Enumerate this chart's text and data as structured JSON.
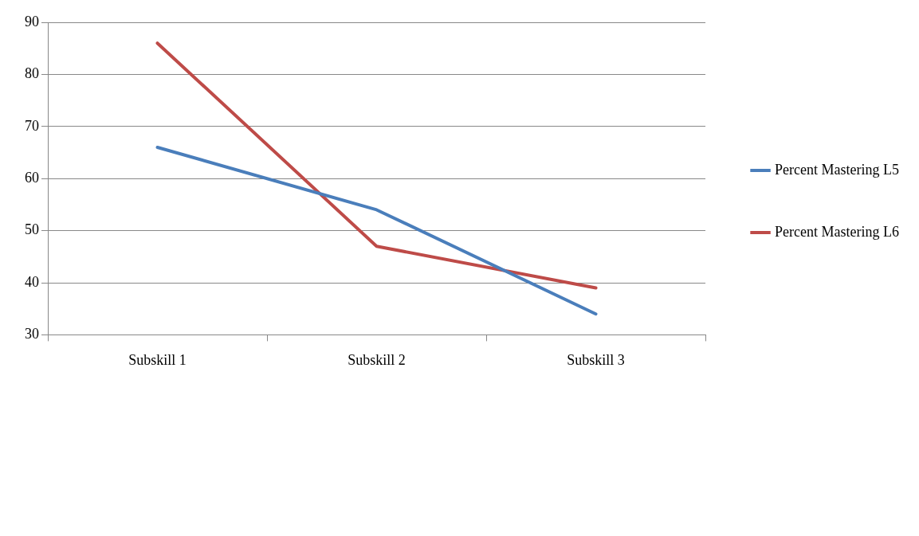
{
  "chart_data": {
    "type": "line",
    "categories": [
      "Subskill 1",
      "Subskill 2",
      "Subskill 3"
    ],
    "series": [
      {
        "name": "Percent Mastering L5",
        "color": "#4a7ebb",
        "values": [
          66,
          54,
          34
        ]
      },
      {
        "name": "Percent Mastering L6",
        "color": "#be4b48",
        "values": [
          86,
          47,
          39
        ]
      }
    ],
    "ylim": [
      30,
      90
    ],
    "yticks": [
      30,
      40,
      50,
      60,
      70,
      80,
      90
    ],
    "grid": "y",
    "legend": "right",
    "marker": "none",
    "line_style": "solid"
  }
}
